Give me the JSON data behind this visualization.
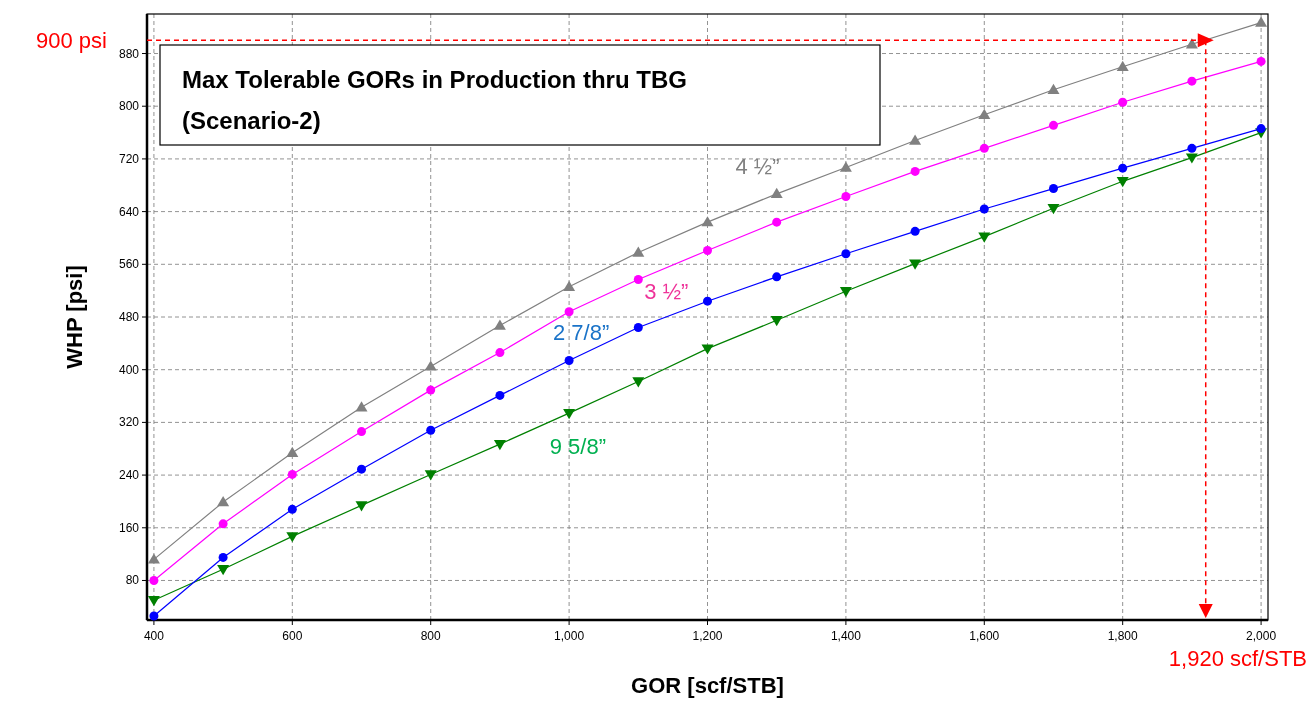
{
  "chart_data": {
    "type": "line",
    "title": "Max Tolerable GORs in Production thru TBG",
    "subtitle": "(Scenario-2)",
    "xlabel": "GOR [scf/STB]",
    "ylabel": "WHP [psi]",
    "x": [
      400,
      500,
      600,
      700,
      800,
      900,
      1000,
      1100,
      1200,
      1300,
      1400,
      1500,
      1600,
      1700,
      1800,
      1900,
      2000
    ],
    "series": [
      {
        "name": "4 ½”",
        "color": "#808080",
        "marker": "triangle",
        "values": [
          112,
          199,
          274,
          343,
          405,
          467,
          526,
          578,
          624,
          667,
          707,
          748,
          787,
          825,
          860,
          894,
          927
        ]
      },
      {
        "name": "3 ½”",
        "color": "#ff00ff",
        "marker": "circle",
        "values": [
          80,
          166,
          241,
          306,
          369,
          426,
          488,
          537,
          581,
          624,
          663,
          701,
          736,
          771,
          806,
          838,
          868
        ]
      },
      {
        "name": "2 7/8”",
        "color": "#0000ff",
        "marker": "circle",
        "values": [
          26,
          115,
          188,
          249,
          308,
          361,
          414,
          464,
          504,
          541,
          576,
          610,
          644,
          675,
          706,
          736,
          766
        ]
      },
      {
        "name": "9 5/8”",
        "color": "#008000",
        "marker": "triangle-down",
        "values": [
          50,
          97,
          147,
          194,
          241,
          287,
          334,
          382,
          432,
          475,
          519,
          561,
          602,
          645,
          686,
          722,
          760
        ]
      }
    ],
    "xlim": [
      390,
      2010
    ],
    "ylim": [
      20,
      940
    ],
    "xticks": [
      400,
      600,
      800,
      {
        "value": 1000,
        "label": "1,000"
      },
      {
        "value": 1200,
        "label": "1,200"
      },
      {
        "value": 1400,
        "label": "1,400"
      },
      {
        "value": 1600,
        "label": "1,600"
      },
      {
        "value": 1800,
        "label": "1,800"
      },
      {
        "value": 2000,
        "label": "2,000"
      }
    ],
    "yticks": [
      80,
      160,
      240,
      320,
      400,
      480,
      560,
      640,
      720,
      800,
      880
    ],
    "ref_lines": [
      {
        "axis": "y",
        "value": 900,
        "label": "900 psi",
        "color": "#ff0000",
        "line_style": "dashed"
      },
      {
        "axis": "x",
        "value": 1920,
        "label": "1,920 scf/STB",
        "color": "#ff0000",
        "line_style": "dashed"
      }
    ],
    "grid": true
  }
}
